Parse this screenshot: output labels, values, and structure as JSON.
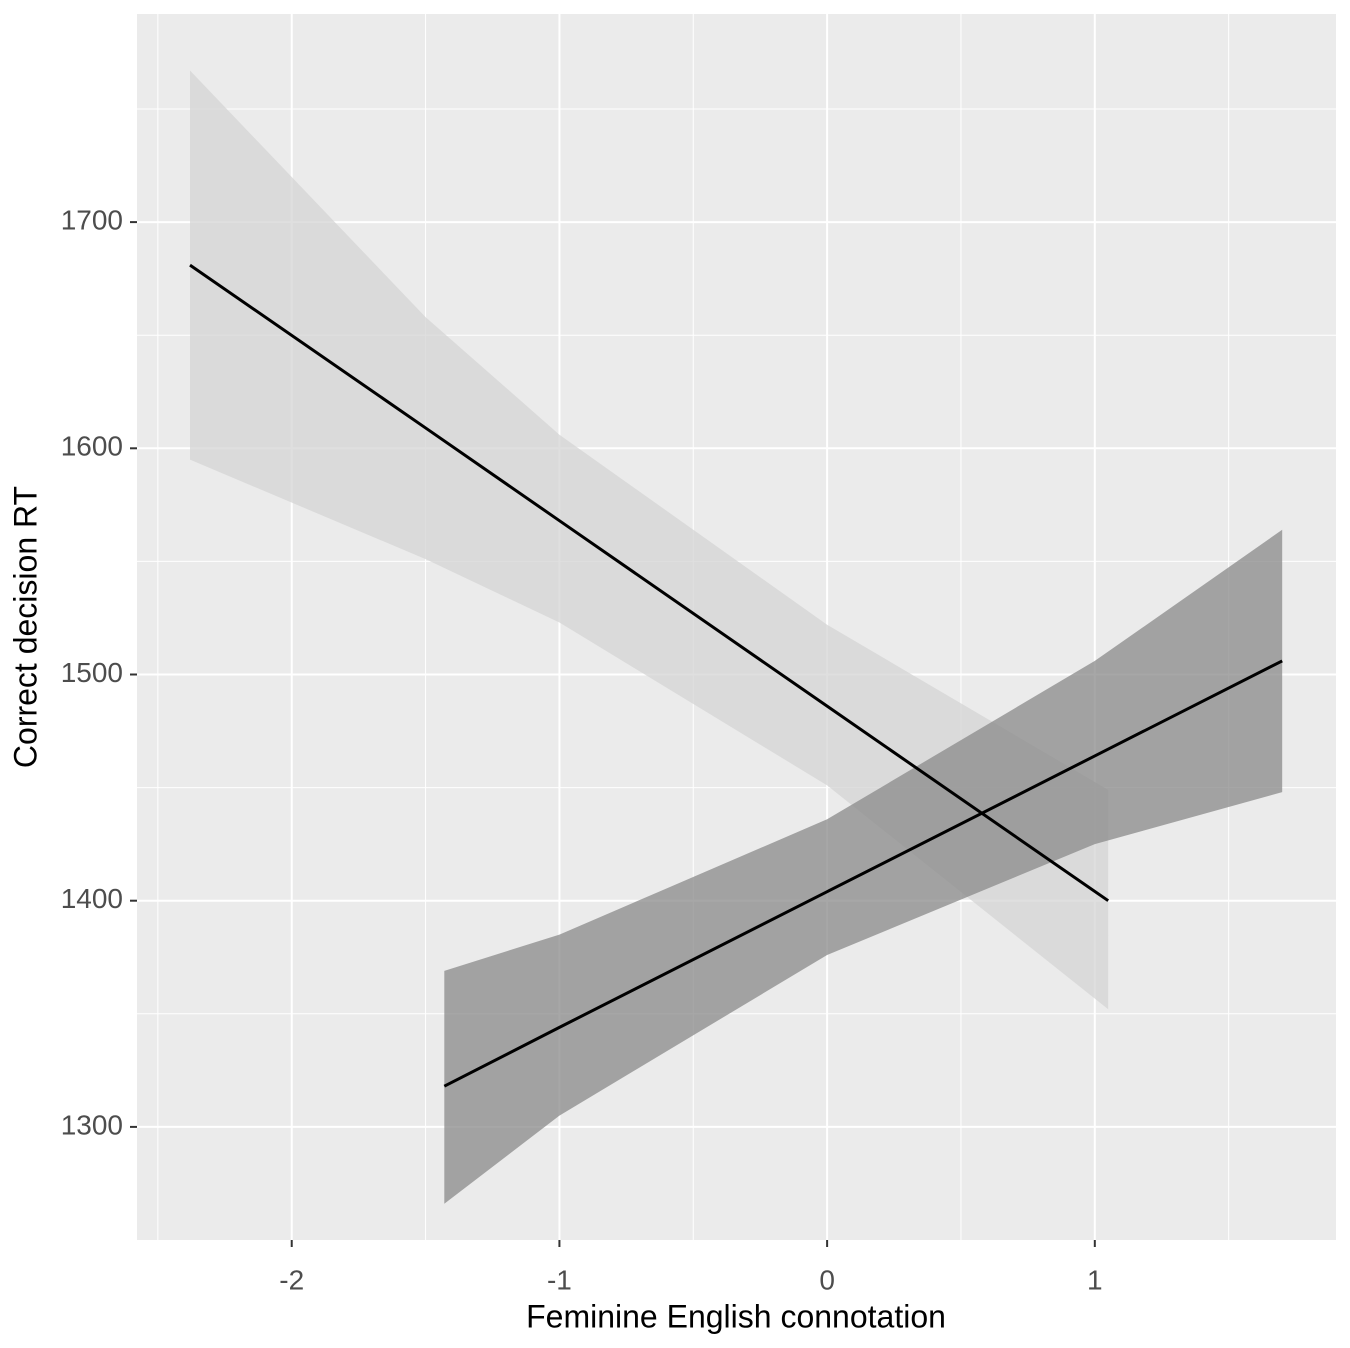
{
  "chart_data": {
    "type": "line",
    "x_label": "Feminine English connotation",
    "y_label": "Correct decision RT",
    "xlim": [
      -2.578,
      1.901
    ],
    "ylim": [
      1250,
      1792
    ],
    "xticks": [
      -2,
      -1,
      0,
      1
    ],
    "yticks": [
      1300,
      1400,
      1500,
      1600,
      1700
    ],
    "xminor": [
      -2.5,
      -1.5,
      -0.5,
      0.5,
      1.5
    ],
    "yminor": [
      1350,
      1450,
      1550,
      1650,
      1750
    ],
    "grid": true,
    "series": [
      {
        "color": "#000000",
        "ribbon_color": "#d4d4d4",
        "x": [
          -2.38,
          -1.5,
          -1,
          0,
          1.05
        ],
        "values": [
          1681,
          1609,
          1568,
          1486,
          1400
        ],
        "upper": [
          1767,
          1658,
          1606,
          1522,
          1449
        ],
        "lower": [
          1595,
          1551,
          1523,
          1451,
          1352
        ]
      },
      {
        "color": "#000000",
        "ribbon_color": "#8a8a8a",
        "x": [
          -1.43,
          -1,
          0,
          1,
          1.7
        ],
        "values": [
          1318,
          1344,
          1404,
          1464,
          1506
        ],
        "upper": [
          1369,
          1385,
          1436,
          1506,
          1564
        ],
        "lower": [
          1266,
          1305,
          1376,
          1425,
          1448
        ]
      }
    ]
  }
}
